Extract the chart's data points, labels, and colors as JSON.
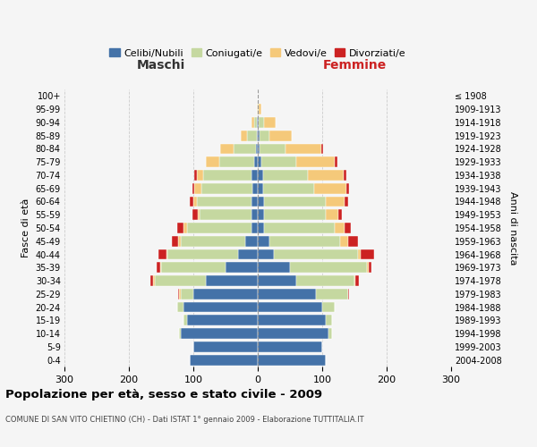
{
  "age_groups": [
    "0-4",
    "5-9",
    "10-14",
    "15-19",
    "20-24",
    "25-29",
    "30-34",
    "35-39",
    "40-44",
    "45-49",
    "50-54",
    "55-59",
    "60-64",
    "65-69",
    "70-74",
    "75-79",
    "80-84",
    "85-89",
    "90-94",
    "95-99",
    "100+"
  ],
  "birth_years": [
    "2004-2008",
    "1999-2003",
    "1994-1998",
    "1989-1993",
    "1984-1988",
    "1979-1983",
    "1974-1978",
    "1969-1973",
    "1964-1968",
    "1959-1963",
    "1954-1958",
    "1949-1953",
    "1944-1948",
    "1939-1943",
    "1934-1938",
    "1929-1933",
    "1924-1928",
    "1919-1923",
    "1914-1918",
    "1909-1913",
    "≤ 1908"
  ],
  "males": {
    "celibi": [
      105,
      100,
      120,
      110,
      115,
      100,
      80,
      50,
      30,
      20,
      10,
      10,
      10,
      8,
      10,
      5,
      3,
      2,
      2,
      0,
      0
    ],
    "coniugati": [
      0,
      0,
      2,
      5,
      10,
      20,
      80,
      100,
      110,
      100,
      100,
      80,
      85,
      80,
      75,
      55,
      35,
      15,
      3,
      0,
      0
    ],
    "vedovi": [
      0,
      0,
      0,
      0,
      0,
      2,
      2,
      2,
      2,
      3,
      5,
      3,
      5,
      10,
      10,
      20,
      20,
      10,
      5,
      2,
      0
    ],
    "divorziati": [
      0,
      0,
      0,
      0,
      0,
      2,
      5,
      5,
      12,
      10,
      10,
      8,
      5,
      3,
      3,
      0,
      0,
      0,
      0,
      0,
      0
    ]
  },
  "females": {
    "nubili": [
      105,
      100,
      110,
      105,
      100,
      90,
      60,
      50,
      25,
      18,
      10,
      10,
      10,
      8,
      8,
      5,
      3,
      3,
      2,
      0,
      0
    ],
    "coniugate": [
      0,
      0,
      5,
      10,
      20,
      50,
      90,
      120,
      130,
      110,
      110,
      95,
      95,
      80,
      70,
      55,
      40,
      15,
      8,
      2,
      0
    ],
    "vedove": [
      0,
      0,
      0,
      0,
      0,
      0,
      2,
      2,
      5,
      12,
      15,
      20,
      30,
      50,
      55,
      60,
      55,
      35,
      18,
      3,
      0
    ],
    "divorziate": [
      0,
      0,
      0,
      0,
      0,
      2,
      5,
      5,
      20,
      15,
      10,
      5,
      5,
      3,
      5,
      3,
      3,
      0,
      0,
      0,
      0
    ]
  },
  "colors": {
    "celibi": "#4472a8",
    "coniugati": "#c5d8a0",
    "vedovi": "#f5c97a",
    "divorziati": "#cc2222"
  },
  "xlim": 300,
  "title": "Popolazione per età, sesso e stato civile - 2009",
  "subtitle": "COMUNE DI SAN VITO CHIETINO (CH) - Dati ISTAT 1° gennaio 2009 - Elaborazione TUTTITALIA.IT",
  "ylabel": "Fasce di età",
  "right_label": "Anni di nascita",
  "legend_labels": [
    "Celibi/Nubili",
    "Coniugati/e",
    "Vedovi/e",
    "Divorziati/e"
  ],
  "bg_color": "#f5f5f5",
  "grid_color": "#cccccc"
}
